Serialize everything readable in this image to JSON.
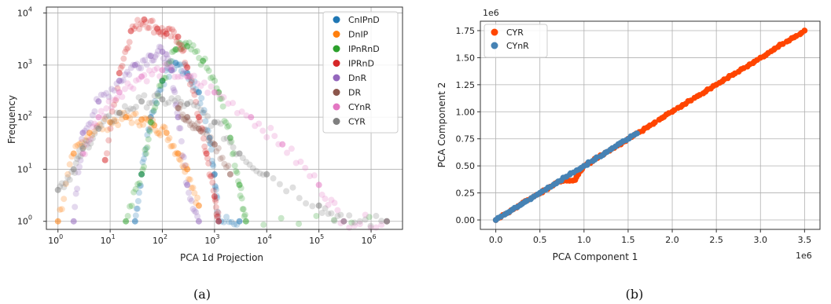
{
  "chart_data": [
    {
      "type": "scatter",
      "caption": "(a)",
      "title": "",
      "xlabel": "PCA 1d Projection",
      "ylabel": "Frequency",
      "xscale": "log",
      "yscale": "log",
      "xlim": [
        0.6,
        4000000
      ],
      "ylim": [
        0.7,
        13000
      ],
      "xticks": [
        {
          "v": 1,
          "base": "10",
          "exp": "0"
        },
        {
          "v": 10,
          "base": "10",
          "exp": "1"
        },
        {
          "v": 100,
          "base": "10",
          "exp": "2"
        },
        {
          "v": 1000,
          "base": "10",
          "exp": "3"
        },
        {
          "v": 10000,
          "base": "10",
          "exp": "4"
        },
        {
          "v": 100000,
          "base": "10",
          "exp": "5"
        },
        {
          "v": 1000000,
          "base": "10",
          "exp": "6"
        }
      ],
      "yticks": [
        {
          "v": 1,
          "base": "10",
          "exp": "0"
        },
        {
          "v": 10,
          "base": "10",
          "exp": "1"
        },
        {
          "v": 100,
          "base": "10",
          "exp": "2"
        },
        {
          "v": 1000,
          "base": "10",
          "exp": "3"
        },
        {
          "v": 10000,
          "base": "10",
          "exp": "4"
        }
      ],
      "grid": true,
      "legend_position": "upper-right",
      "series": [
        {
          "name": "CnIPnD",
          "color": "#1f77b4",
          "points": [
            [
              30,
              1
            ],
            [
              40,
              8
            ],
            [
              60,
              100
            ],
            [
              100,
              500
            ],
            [
              180,
              1100
            ],
            [
              300,
              700
            ],
            [
              500,
              300
            ],
            [
              800,
              40
            ],
            [
              1000,
              8
            ],
            [
              1200,
              1
            ],
            [
              3000,
              1
            ]
          ]
        },
        {
          "name": "DnIP",
          "color": "#ff7f0e",
          "points": [
            [
              1,
              1
            ],
            [
              2,
              20
            ],
            [
              4,
              50
            ],
            [
              10,
              80
            ],
            [
              20,
              100
            ],
            [
              40,
              90
            ],
            [
              70,
              70
            ],
            [
              120,
              50
            ],
            [
              200,
              20
            ],
            [
              300,
              10
            ],
            [
              500,
              2
            ]
          ]
        },
        {
          "name": "IPnRnD",
          "color": "#2ca02c",
          "points": [
            [
              20,
              1
            ],
            [
              40,
              8
            ],
            [
              60,
              80
            ],
            [
              100,
              500
            ],
            [
              180,
              2000
            ],
            [
              300,
              2300
            ],
            [
              600,
              1200
            ],
            [
              1200,
              300
            ],
            [
              2000,
              40
            ],
            [
              3000,
              5
            ],
            [
              4000,
              1
            ],
            [
              2000000,
              1
            ]
          ]
        },
        {
          "name": "IPRnD",
          "color": "#d62728",
          "points": [
            [
              8,
              15
            ],
            [
              15,
              700
            ],
            [
              25,
              4500
            ],
            [
              45,
              7500
            ],
            [
              80,
              5000
            ],
            [
              120,
              4000
            ],
            [
              200,
              3500
            ],
            [
              300,
              900
            ],
            [
              500,
              100
            ],
            [
              700,
              20
            ],
            [
              1000,
              3
            ],
            [
              1200,
              1
            ]
          ]
        },
        {
          "name": "DnR",
          "color": "#9467bd",
          "points": [
            [
              2,
              1
            ],
            [
              3,
              50
            ],
            [
              6,
              200
            ],
            [
              15,
              500
            ],
            [
              30,
              1000
            ],
            [
              60,
              1500
            ],
            [
              100,
              1800
            ],
            [
              150,
              800
            ],
            [
              200,
              100
            ],
            [
              300,
              5
            ],
            [
              500,
              1
            ]
          ]
        },
        {
          "name": "DR",
          "color": "#8c564b",
          "points": [
            [
              200,
              150
            ],
            [
              300,
              100
            ],
            [
              500,
              60
            ],
            [
              1000,
              30
            ],
            [
              2000,
              8
            ]
          ]
        },
        {
          "name": "CYnR",
          "color": "#e377c2",
          "points": [
            [
              3,
              20
            ],
            [
              6,
              100
            ],
            [
              15,
              300
            ],
            [
              40,
              600
            ],
            [
              100,
              800
            ],
            [
              300,
              600
            ],
            [
              1000,
              300
            ],
            [
              5000,
              100
            ],
            [
              20000,
              30
            ],
            [
              100000,
              5
            ],
            [
              300000,
              1
            ],
            [
              2000000,
              1
            ]
          ]
        },
        {
          "name": "CYR",
          "color": "#7f7f7f",
          "points": [
            [
              1,
              4
            ],
            [
              2,
              10
            ],
            [
              3,
              25
            ],
            [
              6,
              60
            ],
            [
              15,
              120
            ],
            [
              40,
              200
            ],
            [
              100,
              220
            ],
            [
              300,
              180
            ],
            [
              1000,
              80
            ],
            [
              3000,
              20
            ],
            [
              10000,
              8
            ],
            [
              100000,
              2
            ],
            [
              300000,
              1
            ],
            [
              2000000,
              1
            ]
          ]
        }
      ]
    },
    {
      "type": "scatter",
      "caption": "(b)",
      "title": "",
      "xlabel": "PCA Component 1",
      "ylabel": "PCA Component 2",
      "x_offset_label": "1e6",
      "y_offset_label": "1e6",
      "xlim": [
        -0.175,
        3.675
      ],
      "ylim": [
        -0.087,
        1.837
      ],
      "xticks": [
        "0.0",
        "0.5",
        "1.0",
        "1.5",
        "2.0",
        "2.5",
        "3.0",
        "3.5"
      ],
      "yticks": [
        "0.00",
        "0.25",
        "0.50",
        "0.75",
        "1.00",
        "1.25",
        "1.50",
        "1.75"
      ],
      "grid": true,
      "legend_position": "upper-left",
      "series": [
        {
          "name": "CYR",
          "color": "#ff4500",
          "points": [
            [
              0,
              0
            ],
            [
              0.2,
              0.1
            ],
            [
              0.4,
              0.2
            ],
            [
              0.7,
              0.35
            ],
            [
              0.9,
              0.37
            ],
            [
              1.0,
              0.5
            ],
            [
              1.5,
              0.75
            ],
            [
              2.0,
              1.0
            ],
            [
              2.5,
              1.25
            ],
            [
              3.0,
              1.5
            ],
            [
              3.2,
              1.6
            ],
            [
              3.5,
              1.75
            ]
          ]
        },
        {
          "name": "CYnR",
          "color": "#4682b4",
          "points": [
            [
              0,
              0
            ],
            [
              0.1,
              0.05
            ],
            [
              0.3,
              0.15
            ],
            [
              0.5,
              0.25
            ],
            [
              0.8,
              0.4
            ],
            [
              1.0,
              0.5
            ],
            [
              1.3,
              0.65
            ],
            [
              1.6,
              0.8
            ]
          ]
        }
      ]
    }
  ]
}
